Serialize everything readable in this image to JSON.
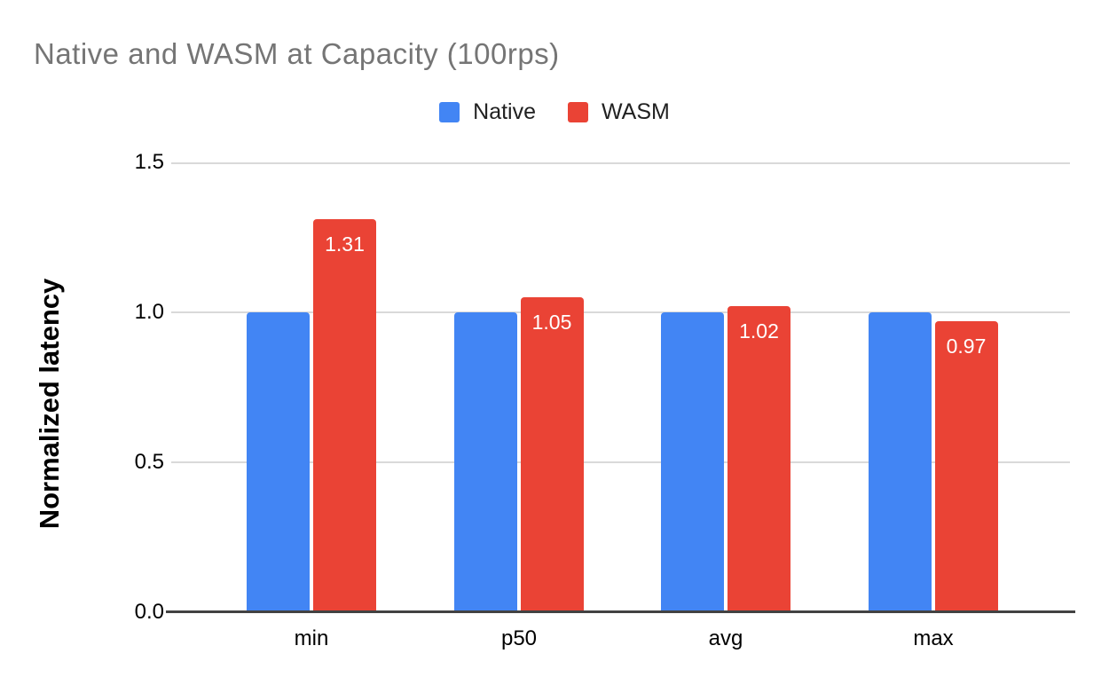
{
  "title": "Native and WASM at Capacity (100rps)",
  "legend": {
    "items": [
      {
        "label": "Native",
        "color": "#4285F4"
      },
      {
        "label": "WASM",
        "color": "#EA4335"
      }
    ]
  },
  "chart_data": {
    "type": "bar",
    "title": "Native and WASM at Capacity (100rps)",
    "categories": [
      "min",
      "p50",
      "avg",
      "max"
    ],
    "series": [
      {
        "name": "Native",
        "color": "#4285F4",
        "values": [
          1.0,
          1.0,
          1.0,
          1.0
        ],
        "data_labels": [
          "",
          "",
          "",
          ""
        ]
      },
      {
        "name": "WASM",
        "color": "#EA4335",
        "values": [
          1.31,
          1.05,
          1.02,
          0.97
        ],
        "data_labels": [
          "1.31",
          "1.05",
          "1.02",
          "0.97"
        ]
      }
    ],
    "xlabel": "",
    "ylabel": "Normalized latency",
    "ylim": [
      0,
      1.5
    ],
    "yticks": [
      "0.0",
      "0.5",
      "1.0",
      "1.5"
    ],
    "grid": true,
    "legend_position": "top",
    "value_label_color": "#ffffff",
    "title_color": "#757575",
    "gridline_color": "#d9d9d9",
    "axis_line_color": "#424242"
  }
}
